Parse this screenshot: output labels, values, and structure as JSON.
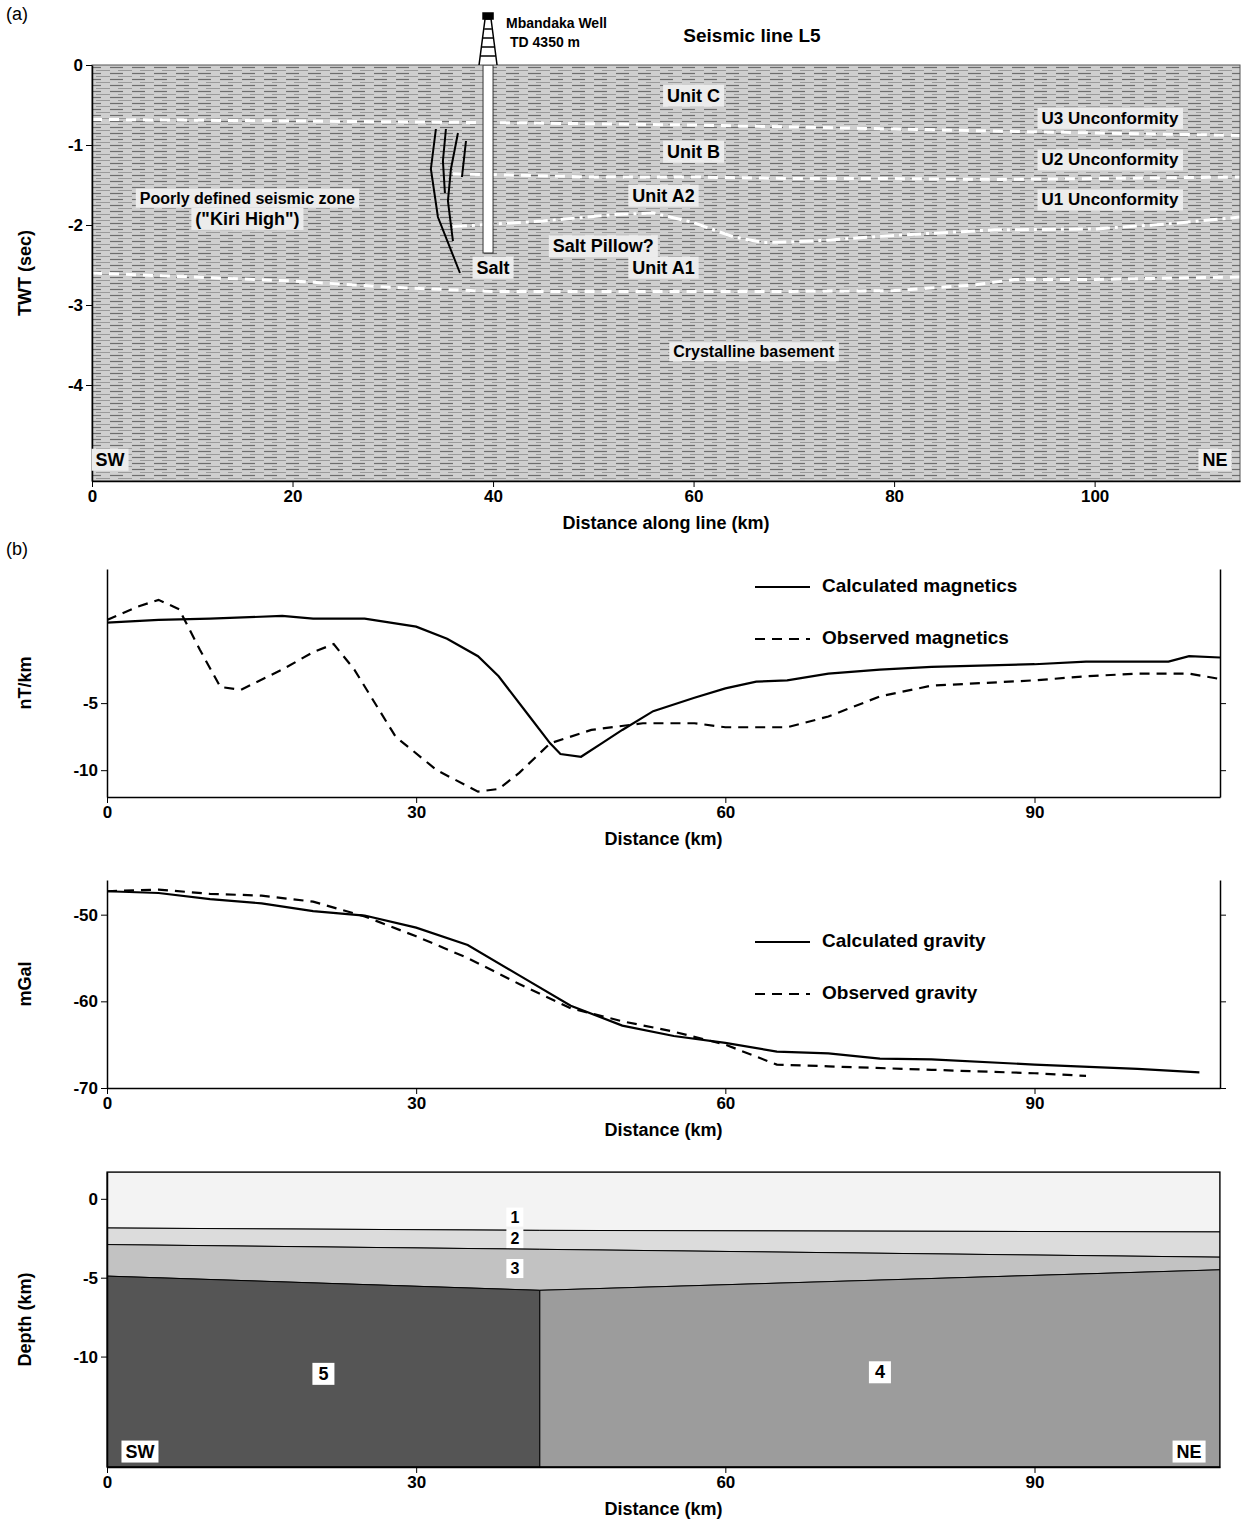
{
  "chart_data": [
    {
      "type": "seismic",
      "label": "(a)",
      "title": "Seismic line L5",
      "x_label": "Distance along line (km)",
      "y_label": "TWT (sec)",
      "xlim": [
        0,
        114.5
      ],
      "ylim": [
        -5.2,
        0
      ],
      "xticks": [
        0,
        20,
        40,
        60,
        80,
        100
      ],
      "yticks": [
        0,
        -1,
        -2,
        -3,
        -4
      ],
      "well": {
        "name": "Mbandaka Well",
        "label": "TD 4350 m",
        "x": 39.5,
        "bottom": -2.35
      },
      "series": [
        {
          "name": "U3 Unconformity",
          "color": "#ffffff",
          "line_style": "dashed",
          "x": [
            0,
            20,
            40,
            60,
            80,
            100,
            114.5
          ],
          "values": [
            -0.68,
            -0.7,
            -0.72,
            -0.75,
            -0.8,
            -0.85,
            -0.88
          ]
        },
        {
          "name": "U2 Unconformity",
          "color": "#ffffff",
          "line_style": "dashed",
          "x": [
            36,
            50,
            60,
            70,
            80,
            90,
            100,
            114.5
          ],
          "values": [
            -1.36,
            -1.4,
            -1.4,
            -1.42,
            -1.42,
            -1.43,
            -1.42,
            -1.4
          ]
        },
        {
          "name": "U1 Unconformity",
          "color": "#ffffff",
          "line_style": "dashdot",
          "x": [
            36,
            45,
            52,
            56,
            60,
            64,
            67,
            72,
            80,
            90,
            100,
            108,
            114.5
          ],
          "values": [
            -2.02,
            -1.95,
            -1.87,
            -1.85,
            -1.97,
            -2.15,
            -2.22,
            -2.2,
            -2.13,
            -2.06,
            -2.05,
            -1.98,
            -1.9
          ]
        },
        {
          "color": "#ffffff",
          "line_style": "dashed",
          "x": [
            0,
            10,
            20,
            30,
            40,
            50,
            60,
            70,
            80,
            88,
            92,
            100,
            114.5
          ],
          "values": [
            -2.6,
            -2.65,
            -2.7,
            -2.78,
            -2.83,
            -2.83,
            -2.83,
            -2.83,
            -2.82,
            -2.75,
            -2.68,
            -2.68,
            -2.65
          ]
        }
      ],
      "faults": [
        {
          "x": [
            34.3,
            33.8,
            34.5,
            36.7
          ],
          "values": [
            -0.8,
            -1.3,
            -1.9,
            -2.6
          ]
        },
        {
          "x": [
            35.3,
            35.0,
            35.2
          ],
          "values": [
            -0.8,
            -1.2,
            -1.6
          ]
        },
        {
          "x": [
            36.5,
            35.8,
            35.5,
            36.0
          ],
          "values": [
            -0.85,
            -1.3,
            -1.7,
            -2.2
          ]
        },
        {
          "x": [
            37.3,
            36.9
          ],
          "values": [
            -0.95,
            -1.4
          ]
        }
      ],
      "annotations": [
        {
          "text": "Unit C",
          "x": 60,
          "y": -0.4
        },
        {
          "text": "Unit B",
          "x": 60,
          "y": -1.1
        },
        {
          "text": "Unit A2",
          "x": 57,
          "y": -1.65
        },
        {
          "text": "Unit A1",
          "x": 57,
          "y": -2.55
        },
        {
          "text": "Poorly defined seismic zone",
          "x": 15.5,
          "y": -1.68
        },
        {
          "text": "(\"Kiri High\")",
          "x": 15.5,
          "y": -1.94
        },
        {
          "text": "Salt",
          "x": 40,
          "y": -2.55
        },
        {
          "text": "Salt Pillow?",
          "x": 51,
          "y": -2.28
        },
        {
          "text": "Crystalline basement",
          "x": 66,
          "y": -3.6
        },
        {
          "text": "SW",
          "x": 1.8,
          "y": -4.95
        },
        {
          "text": "NE",
          "x": 112,
          "y": -4.95
        }
      ]
    },
    {
      "type": "line",
      "label": "(b)",
      "x_label": "Distance (km)",
      "y_label": "nT/km",
      "xlim": [
        0,
        108
      ],
      "ylim": [
        -12,
        5
      ],
      "xticks": [
        0,
        30,
        60,
        90
      ],
      "yticks": [
        -10,
        -5
      ],
      "legend": "upper right",
      "series": [
        {
          "name": "Calculated magnetics",
          "color": "#000000",
          "line_style": "solid",
          "x": [
            0,
            5,
            10,
            17,
            20,
            25,
            30,
            33,
            36,
            38,
            41,
            43,
            44,
            46,
            48,
            50,
            53,
            57,
            60,
            63,
            66,
            70,
            75,
            80,
            90,
            95,
            103,
            105,
            108
          ],
          "values": [
            1.0,
            1.2,
            1.3,
            1.5,
            1.3,
            1.3,
            0.7,
            -0.2,
            -1.5,
            -3.0,
            -6.0,
            -8.0,
            -8.8,
            -9.0,
            -8.0,
            -7.0,
            -5.6,
            -4.6,
            -3.9,
            -3.4,
            -3.3,
            -2.8,
            -2.5,
            -2.3,
            -2.1,
            -1.9,
            -1.9,
            -1.5,
            -1.6
          ]
        },
        {
          "name": "Observed magnetics",
          "color": "#000000",
          "line_style": "dashed",
          "x": [
            0,
            3,
            5,
            7,
            9,
            11,
            13,
            17,
            20,
            22,
            24,
            28,
            32,
            36,
            38,
            40,
            43,
            47,
            52,
            57,
            60,
            66,
            70,
            75,
            80,
            85,
            90,
            95,
            100,
            105,
            108
          ],
          "values": [
            1.2,
            2.2,
            2.7,
            2.0,
            -1.0,
            -3.8,
            -4.0,
            -2.5,
            -1.2,
            -0.6,
            -2.5,
            -7.5,
            -10.0,
            -11.6,
            -11.4,
            -10.2,
            -8.0,
            -7.0,
            -6.5,
            -6.5,
            -6.8,
            -6.8,
            -6.0,
            -4.5,
            -3.7,
            -3.5,
            -3.3,
            -3.0,
            -2.8,
            -2.8,
            -3.2
          ]
        }
      ]
    },
    {
      "type": "line",
      "x_label": "Distance (km)",
      "y_label": "mGal",
      "xlim": [
        0,
        108
      ],
      "ylim": [
        -70,
        -46
      ],
      "xticks": [
        0,
        30,
        60,
        90
      ],
      "yticks": [
        -50,
        -60,
        -70
      ],
      "legend": "right",
      "series": [
        {
          "name": "Calculated gravity",
          "color": "#000000",
          "line_style": "solid",
          "x": [
            0,
            5,
            10,
            15,
            20,
            25,
            30,
            35,
            40,
            45,
            50,
            55,
            60,
            65,
            70,
            75,
            80,
            90,
            100,
            106
          ],
          "values": [
            -47.3,
            -47.5,
            -48.2,
            -48.7,
            -49.6,
            -50.1,
            -51.5,
            -53.5,
            -57.0,
            -60.5,
            -62.8,
            -64.0,
            -64.8,
            -65.8,
            -66.0,
            -66.6,
            -66.7,
            -67.3,
            -67.8,
            -68.2
          ]
        },
        {
          "name": "Observed gravity",
          "color": "#000000",
          "line_style": "dashed",
          "x": [
            0,
            5,
            10,
            15,
            20,
            25,
            30,
            35,
            40,
            45,
            50,
            55,
            60,
            65,
            70,
            80,
            90,
            95
          ],
          "values": [
            -47.3,
            -47.1,
            -47.6,
            -47.8,
            -48.5,
            -50.2,
            -52.5,
            -55.0,
            -58.0,
            -60.8,
            -62.3,
            -63.5,
            -65.0,
            -67.3,
            -67.5,
            -67.9,
            -68.3,
            -68.6
          ]
        }
      ]
    },
    {
      "type": "section",
      "x_label": "Distance (km)",
      "y_label": "Depth (km)",
      "xlim": [
        0,
        108
      ],
      "ylim": [
        -17,
        1.7
      ],
      "xticks": [
        0,
        30,
        60,
        90
      ],
      "yticks": [
        0,
        -5,
        -10
      ],
      "x": [
        0,
        42,
        108
      ],
      "layers": [
        {
          "name": "1",
          "color": "#f3f3f3",
          "bottom": [
            -1.85,
            -2.0,
            -2.1
          ]
        },
        {
          "name": "2",
          "color": "#dcdcdc",
          "bottom": [
            -2.9,
            -3.2,
            -3.7
          ]
        },
        {
          "name": "3",
          "color": "#c2c2c2",
          "bottom": [
            -4.9,
            -5.8,
            -4.5
          ]
        }
      ],
      "bodies": [
        {
          "name": "5",
          "color": "#555555",
          "x": [
            0,
            42
          ]
        },
        {
          "name": "4",
          "color": "#9c9c9c",
          "x": [
            42,
            108
          ]
        }
      ],
      "annotations": [
        {
          "text": "SW",
          "x": 3.2,
          "y": -16.1
        },
        {
          "text": "NE",
          "x": 105,
          "y": -16.1
        }
      ]
    }
  ]
}
